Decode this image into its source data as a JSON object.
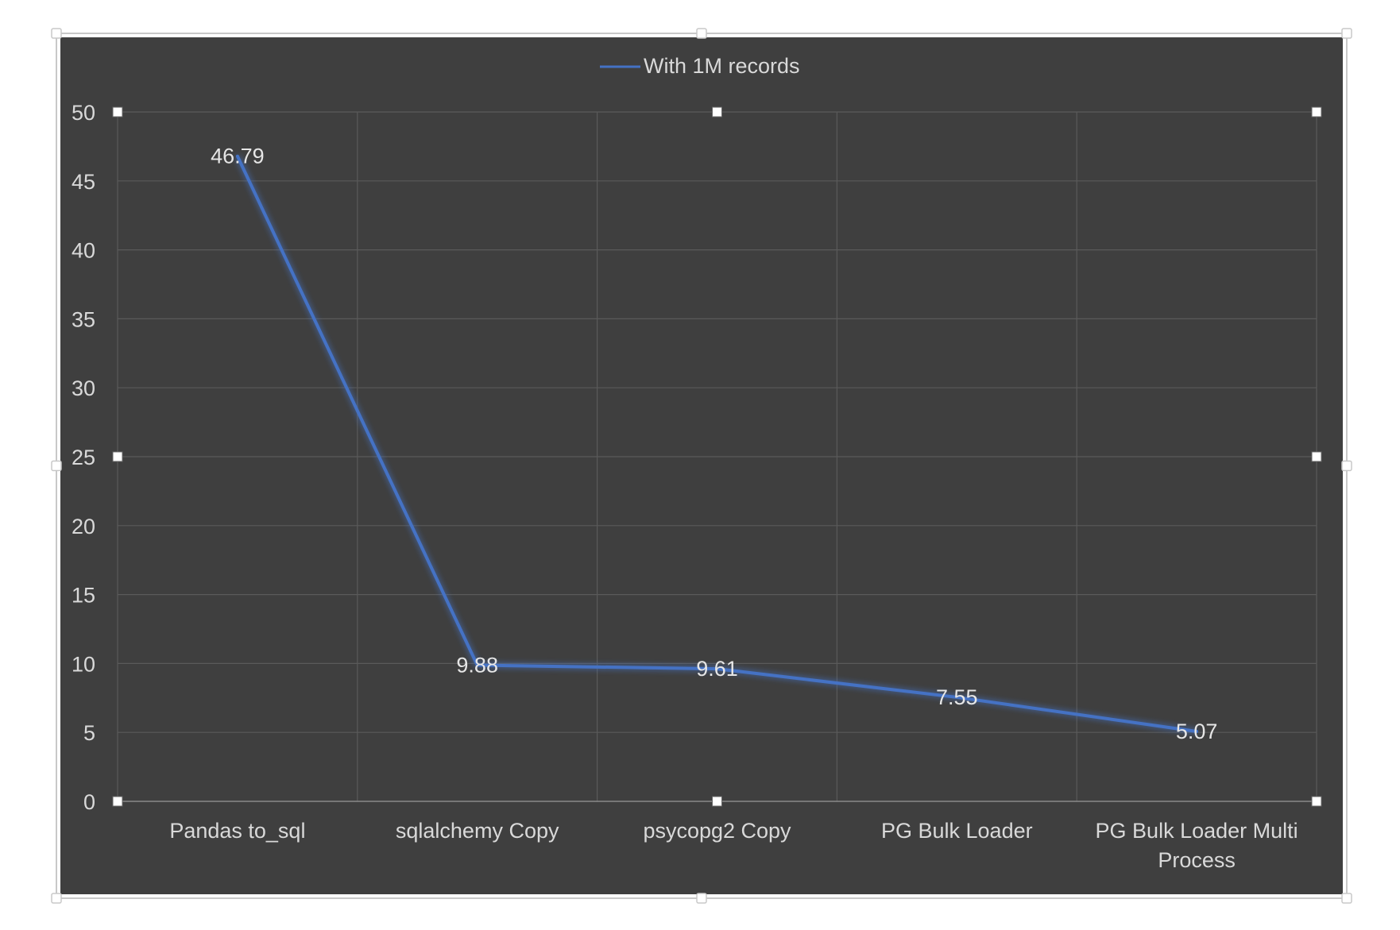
{
  "chart_data": {
    "type": "line",
    "categories": [
      [
        "Pandas to_sql"
      ],
      [
        "sqlalchemy Copy"
      ],
      [
        "psycopg2 Copy"
      ],
      [
        "PG Bulk Loader"
      ],
      [
        "PG Bulk Loader Multi",
        "Process"
      ]
    ],
    "series": [
      {
        "name": "With 1M records",
        "values": [
          46.79,
          9.88,
          9.61,
          7.55,
          5.07
        ],
        "labels": [
          "46.79",
          "9.88",
          "9.61",
          "7.55",
          "5.07"
        ],
        "color": "#4472C4"
      }
    ],
    "yticks": [
      "0",
      "5",
      "10",
      "15",
      "20",
      "25",
      "30",
      "35",
      "40",
      "45",
      "50"
    ],
    "ylim": [
      0,
      50
    ],
    "ystep": 5,
    "grid": true,
    "legend": "top-center",
    "colors": {
      "chart_background": "#3F3F3F",
      "gridline": "#5A5A5A",
      "text": "#D9D9D9",
      "line": "#4472C4",
      "selection_frame": "#C8C8C8"
    }
  }
}
